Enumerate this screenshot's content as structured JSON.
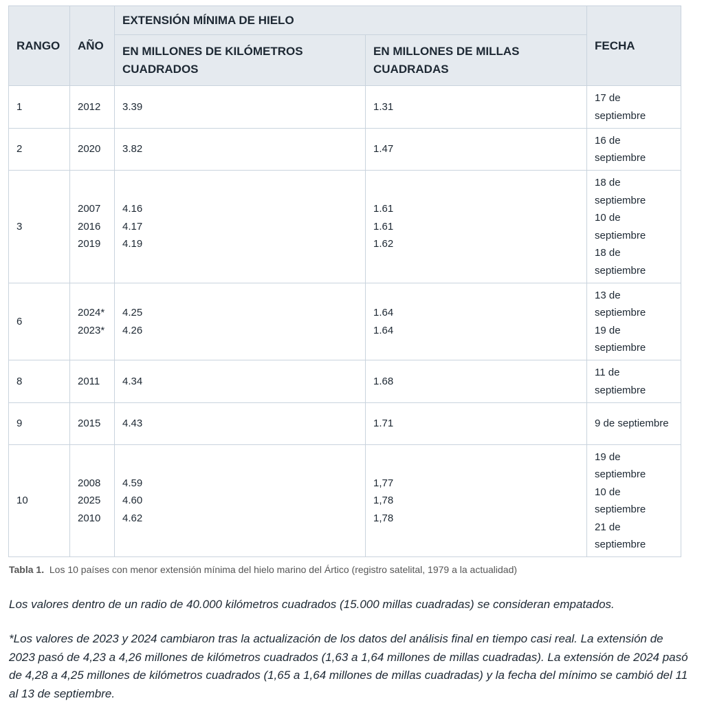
{
  "table": {
    "headers": {
      "rank": "RANGO",
      "year": "AÑO",
      "extent": "EXTENSIÓN MÍNIMA DE HIELO",
      "km": "EN MILLONES DE KILÓMETROS CUADRADOS",
      "mi": "EN MILLONES DE MILLAS CUADRADAS",
      "date": "FECHA"
    },
    "rows": [
      {
        "rank": "1",
        "years": [
          "2012"
        ],
        "km": [
          "3.39"
        ],
        "mi": [
          "1.31"
        ],
        "dates": [
          "17 de septiembre"
        ]
      },
      {
        "rank": "2",
        "years": [
          "2020"
        ],
        "km": [
          "3.82"
        ],
        "mi": [
          "1.47"
        ],
        "dates": [
          "16 de septiembre"
        ]
      },
      {
        "rank": "3",
        "years": [
          "2007",
          "2016",
          "2019"
        ],
        "km": [
          "4.16",
          "4.17",
          "4.19"
        ],
        "mi": [
          "1.61",
          "1.61",
          "1.62"
        ],
        "dates": [
          "18 de septiembre",
          "10 de septiembre",
          "18 de septiembre"
        ]
      },
      {
        "rank": "6",
        "years": [
          "2024*",
          "2023*"
        ],
        "km": [
          "4.25",
          "4.26"
        ],
        "mi": [
          "1.64",
          "1.64"
        ],
        "dates": [
          "13 de septiembre",
          "19 de septiembre"
        ]
      },
      {
        "rank": "8",
        "years": [
          "2011"
        ],
        "km": [
          "4.34"
        ],
        "mi": [
          "1.68"
        ],
        "dates": [
          "11 de septiembre"
        ]
      },
      {
        "rank": "9",
        "years": [
          "2015"
        ],
        "km": [
          "4.43"
        ],
        "mi": [
          "1.71"
        ],
        "dates": [
          "9 de septiembre"
        ]
      },
      {
        "rank": "10",
        "years": [
          "2008",
          "2025",
          "2010"
        ],
        "km": [
          "4.59",
          "4.60",
          "4.62"
        ],
        "mi": [
          "1,77",
          "1,78",
          "1,78"
        ],
        "dates": [
          "19 de septiembre",
          "10 de septiembre",
          "21 de septiembre"
        ]
      }
    ]
  },
  "caption": {
    "label": "Tabla 1.",
    "text": "Los 10 países con menor extensión mínima del hielo marino del Ártico (registro satelital, 1979 a la actualidad)"
  },
  "notes": [
    "Los valores dentro de un radio de 40.000 kilómetros cuadrados (15.000 millas cuadradas) se consideran empatados.",
    "*Los valores de 2023 y 2024 cambiaron tras la actualización de los datos del análisis final en tiempo casi real. La extensión de 2023 pasó de 4,23 a 4,26 millones de kilómetros cuadrados (1,63 a 1,64 millones de millas cuadradas). La extensión de 2024 pasó de 4,28 a 4,25 millones de kilómetros cuadrados (1,65 a 1,64 millones de millas cuadradas) y la fecha del mínimo se cambió del 11 al 13 de septiembre."
  ]
}
